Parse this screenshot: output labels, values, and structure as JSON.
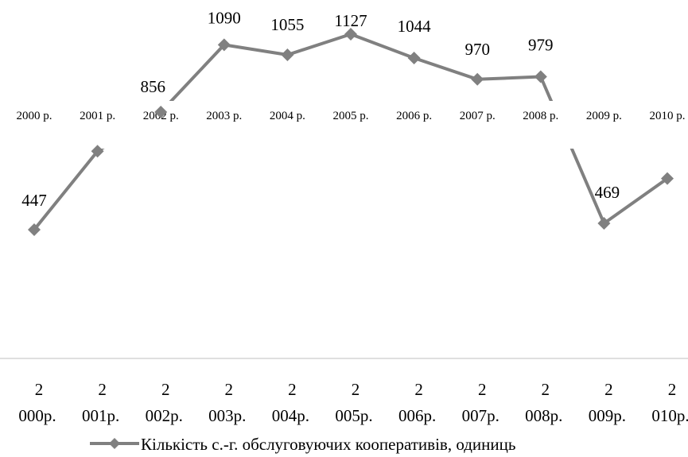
{
  "chart_data": {
    "type": "line",
    "categories": [
      "2000 р.",
      "2001 р.",
      "2002 р.",
      "2003 р.",
      "2004 р.",
      "2005 р.",
      "2006 р.",
      "2007 р.",
      "2008 р.",
      "2009 р.",
      "2010 р."
    ],
    "bottom_labels": [
      {
        "top": "2",
        "bottom": "000р."
      },
      {
        "top": "2",
        "bottom": "001р."
      },
      {
        "top": "2",
        "bottom": "002р."
      },
      {
        "top": "2",
        "bottom": "003р."
      },
      {
        "top": "2",
        "bottom": "004р."
      },
      {
        "top": "2",
        "bottom": "005р."
      },
      {
        "top": "2",
        "bottom": "006р."
      },
      {
        "top": "2",
        "bottom": "007р."
      },
      {
        "top": "2",
        "bottom": "008р."
      },
      {
        "top": "2",
        "bottom": "009р."
      },
      {
        "top": "2",
        "bottom": "010р."
      }
    ],
    "series": [
      {
        "name": "Кількість с.-г. обслуговуючих кооперативів, одиниць",
        "values": [
          447,
          720,
          856,
          1090,
          1055,
          1127,
          1044,
          970,
          979,
          469,
          625
        ],
        "data_labels": [
          "447",
          "",
          "856",
          "1090",
          "1055",
          "1127",
          "1044",
          "970",
          "979",
          "469",
          ""
        ],
        "color": "#808080"
      }
    ],
    "legend": "bottom",
    "grid": false
  }
}
